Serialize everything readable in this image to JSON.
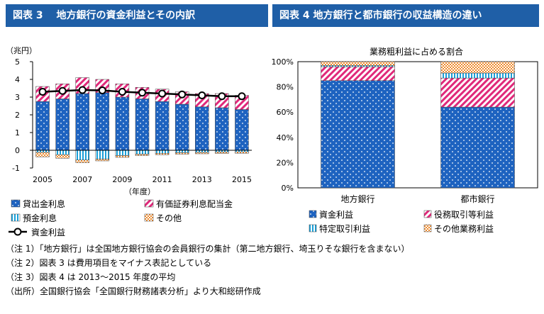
{
  "header_left": "図表 3　 地方銀行の資金利益とその内訳",
  "header_right": "図表 4  地方銀行と都市銀行の収益構造の違い",
  "chart_data": [
    {
      "type": "bar",
      "unit_label": "（兆円）",
      "x_title": "（年度）",
      "categories": [
        "2005",
        "2006",
        "2007",
        "2008",
        "2009",
        "2010",
        "2011",
        "2012",
        "2013",
        "2014",
        "2015"
      ],
      "x_tick_labels": [
        "2005",
        "",
        "2007",
        "",
        "2009",
        "",
        "2011",
        "",
        "2013",
        "",
        "2015"
      ],
      "ylim": [
        -1,
        5
      ],
      "y_ticks": [
        "-1",
        "0",
        "1",
        "2",
        "3",
        "4",
        "5"
      ],
      "series": [
        {
          "name": "貸出金利息",
          "values": [
            2.75,
            2.9,
            3.2,
            3.25,
            3.0,
            2.9,
            2.75,
            2.6,
            2.45,
            2.4,
            2.3
          ]
        },
        {
          "name": "有価証券利息配当金",
          "values": [
            0.85,
            0.85,
            0.9,
            0.75,
            0.75,
            0.65,
            0.7,
            0.7,
            0.75,
            0.8,
            0.8
          ]
        },
        {
          "name": "預金利息",
          "values": [
            -0.12,
            -0.25,
            -0.55,
            -0.5,
            -0.3,
            -0.22,
            -0.17,
            -0.14,
            -0.12,
            -0.1,
            -0.09
          ]
        },
        {
          "name": "その他",
          "values": [
            -0.25,
            -0.2,
            -0.15,
            -0.1,
            -0.1,
            -0.08,
            -0.08,
            -0.08,
            -0.08,
            -0.08,
            -0.08
          ]
        },
        {
          "name": "資金利益",
          "values": [
            3.3,
            3.35,
            3.4,
            3.38,
            3.3,
            3.25,
            3.2,
            3.15,
            3.1,
            3.05,
            3.05
          ]
        }
      ]
    },
    {
      "type": "bar",
      "title": "業務粗利益に占める割合",
      "categories": [
        "地方銀行",
        "都市銀行"
      ],
      "y_ticks": [
        "0%",
        "20%",
        "40%",
        "60%",
        "80%",
        "100%"
      ],
      "ylim": [
        0,
        100
      ],
      "series": [
        {
          "name": "資金利益",
          "values": [
            85,
            64
          ]
        },
        {
          "name": "役務取引等利益",
          "values": [
            11,
            23
          ]
        },
        {
          "name": "特定取引利益",
          "values": [
            1,
            4
          ]
        },
        {
          "name": "その他業務利益",
          "values": [
            3,
            9
          ]
        }
      ]
    }
  ],
  "notes": [
    "（注 1）「地方銀行」は全国地方銀行協会の会員銀行の集計（第二地方銀行、埼玉りそな銀行を含まない）",
    "（注 2）図表 3 は費用項目をマイナス表記としている",
    "（注 3）図表 4 は 2013〜2015 年度の平均",
    "（出所）全国銀行協会「全国銀行財務諸表分析」より大和総研作成"
  ]
}
